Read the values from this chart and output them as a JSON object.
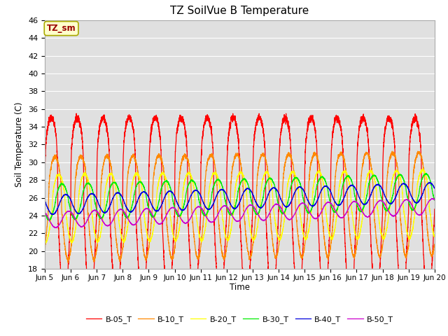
{
  "title": "TZ SoilVue B Temperature",
  "ylabel": "Soil Temperature (C)",
  "xlabel": "Time",
  "ylim": [
    18,
    46
  ],
  "yticks": [
    18,
    20,
    22,
    24,
    26,
    28,
    30,
    32,
    34,
    36,
    38,
    40,
    42,
    44,
    46
  ],
  "legend_label": "TZ_sm",
  "legend_label_color": "#990000",
  "legend_box_color": "#ffffcc",
  "series_colors": {
    "B-05_T": "#ff0000",
    "B-10_T": "#ff8800",
    "B-20_T": "#ffff00",
    "B-30_T": "#00ee00",
    "B-40_T": "#0000dd",
    "B-50_T": "#cc00cc"
  },
  "series_names": [
    "B-05_T",
    "B-10_T",
    "B-20_T",
    "B-30_T",
    "B-40_T",
    "B-50_T"
  ],
  "plot_bg_color": "#e0e0e0",
  "fig_bg_color": "#ffffff",
  "grid_color": "#ffffff",
  "n_days": 15,
  "points_per_day": 288,
  "amplitudes": [
    10.5,
    5.8,
    3.8,
    2.0,
    1.1,
    0.9
  ],
  "baselines": [
    24.5,
    24.8,
    24.8,
    25.5,
    25.2,
    23.5
  ],
  "baseline_drifts": [
    0.0,
    0.5,
    0.5,
    1.2,
    1.4,
    1.5
  ],
  "phase_shifts": [
    0.0,
    0.9,
    1.8,
    2.6,
    3.5,
    4.2
  ],
  "sharpness": [
    4.0,
    2.5,
    2.0,
    1.5,
    1.2,
    1.1
  ],
  "tick_labels": [
    "Jun 5",
    "Jun 6",
    "Jun 7",
    "Jun 8",
    "Jun 9",
    "Jun 10",
    "Jun 11",
    "Jun 12",
    "Jun 13",
    "Jun 14",
    "Jun 15",
    "Jun 16",
    "Jun 17",
    "Jun 18",
    "Jun 19",
    "Jun 20"
  ],
  "tick_positions": [
    0,
    1,
    2,
    3,
    4,
    5,
    6,
    7,
    8,
    9,
    10,
    11,
    12,
    13,
    14,
    15
  ]
}
